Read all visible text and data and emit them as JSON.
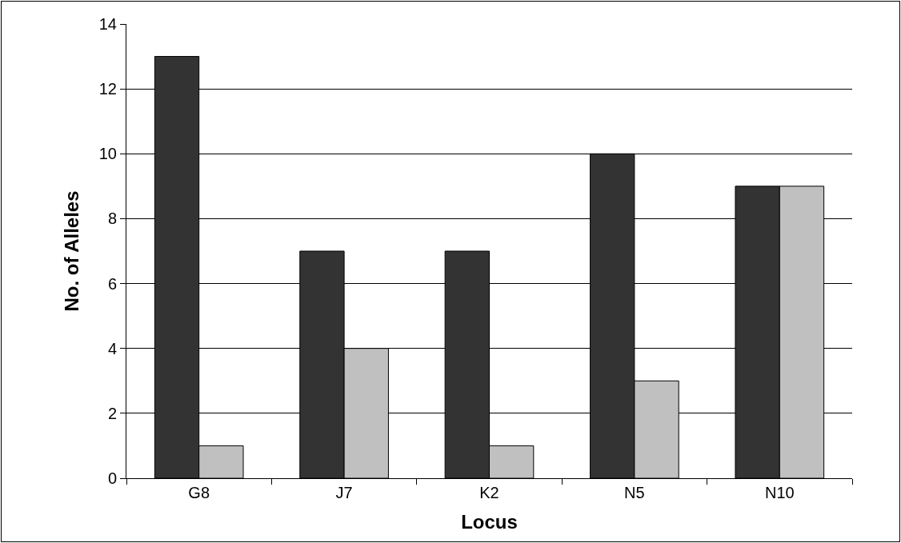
{
  "chart_data": {
    "type": "bar",
    "xlabel": "Locus",
    "ylabel": "No. of Alleles",
    "categories": [
      "G8",
      "J7",
      "K2",
      "N5",
      "N10"
    ],
    "series": [
      {
        "color": "#333333",
        "values": [
          13,
          7,
          7,
          10,
          9
        ]
      },
      {
        "color": "#c0c0c0",
        "values": [
          1,
          4,
          1,
          3,
          9
        ]
      }
    ],
    "ylim": [
      0,
      14
    ],
    "yticks": [
      0,
      2,
      4,
      6,
      8,
      10,
      12,
      14
    ],
    "grid": "y"
  }
}
